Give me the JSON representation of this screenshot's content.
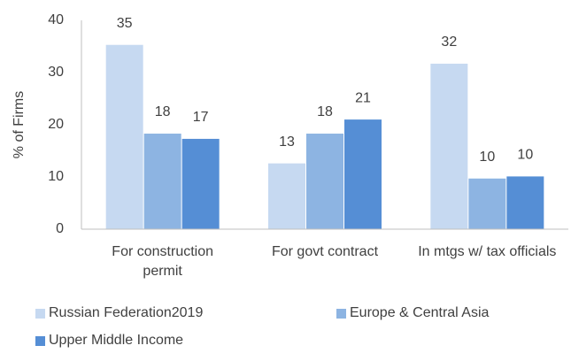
{
  "chart_data": {
    "type": "bar",
    "y_axis_label": "% of Firms",
    "categories": [
      "For construction permit",
      "For govt contract",
      "In mtgs w/ tax officials"
    ],
    "series": [
      {
        "name": "Russian Federation2019",
        "color": "#c6d9f1",
        "values": [
          35.3,
          12.6,
          31.7
        ],
        "value_labels": [
          "35",
          "13",
          "32"
        ]
      },
      {
        "name": "Europe & Central Asia",
        "color": "#8db4e2",
        "values": [
          18.3,
          18.3,
          9.7
        ],
        "value_labels": [
          "18",
          "18",
          "10"
        ]
      },
      {
        "name": "Upper Middle Income",
        "color": "#558ed5",
        "values": [
          17.3,
          21.0,
          10.1
        ],
        "value_labels": [
          "17",
          "21",
          "10"
        ]
      }
    ],
    "ylim": [
      0,
      40
    ],
    "yticks": [
      0,
      10,
      20,
      30,
      40
    ],
    "grid": false
  }
}
